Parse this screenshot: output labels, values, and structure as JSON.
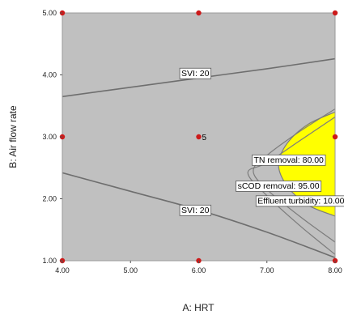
{
  "chart_data": {
    "type": "contour-overlay",
    "xlabel": "A: HRT",
    "ylabel": "B: Air flow rate",
    "xlim": [
      4.0,
      8.0
    ],
    "ylim": [
      1.0,
      5.0
    ],
    "x_ticks": [
      "4.00",
      "5.00",
      "6.00",
      "7.00",
      "8.00"
    ],
    "y_ticks": [
      "1.00",
      "2.00",
      "3.00",
      "4.00",
      "5.00"
    ],
    "colors": {
      "background": "#c0c0c0",
      "feasible_region": "#ffff00",
      "contour_line": "#6e6e6e",
      "design_point": "#cc1a1a"
    },
    "contours": [
      {
        "label": "SVI: 20",
        "points": [
          [
            4.0,
            3.65
          ],
          [
            5.0,
            3.8
          ],
          [
            6.0,
            3.95
          ],
          [
            7.0,
            4.1
          ],
          [
            8.0,
            4.26
          ]
        ],
        "label_at": [
          5.95,
          4.02
        ]
      },
      {
        "label": "SVI: 20",
        "points": [
          [
            4.0,
            2.42
          ],
          [
            5.0,
            2.12
          ],
          [
            6.0,
            1.82
          ],
          [
            7.0,
            1.46
          ],
          [
            8.0,
            1.05
          ]
        ],
        "label_at": [
          5.95,
          1.81
        ]
      },
      {
        "label": "TN removal: 80.00",
        "points": [
          [
            8.0,
            3.4
          ],
          [
            7.6,
            3.2
          ],
          [
            7.3,
            2.9
          ],
          [
            7.17,
            2.55
          ],
          [
            7.3,
            2.2
          ],
          [
            7.6,
            1.9
          ],
          [
            8.0,
            1.72
          ]
        ],
        "label_at": [
          7.32,
          2.62
        ]
      },
      {
        "label": "sCOD removal: 95.00",
        "points": [
          [
            8.0,
            3.45
          ],
          [
            7.5,
            3.1
          ],
          [
            7.0,
            2.7
          ],
          [
            6.8,
            2.45
          ],
          [
            7.0,
            2.15
          ],
          [
            7.5,
            1.7
          ],
          [
            8.0,
            1.3
          ]
        ],
        "label_at": [
          7.17,
          2.2
        ]
      },
      {
        "label": "Effluent turbidity: 10.00",
        "points": [
          [
            8.0,
            3.32
          ],
          [
            7.5,
            2.95
          ],
          [
            7.0,
            2.58
          ],
          [
            6.72,
            2.42
          ],
          [
            7.0,
            2.05
          ],
          [
            7.5,
            1.55
          ],
          [
            8.0,
            1.1
          ]
        ],
        "label_at": [
          7.5,
          1.96
        ]
      }
    ],
    "feasible_region": [
      [
        8.0,
        3.4
      ],
      [
        7.6,
        3.2
      ],
      [
        7.3,
        2.9
      ],
      [
        7.17,
        2.55
      ],
      [
        7.3,
        2.2
      ],
      [
        7.6,
        1.9
      ],
      [
        8.0,
        1.72
      ]
    ],
    "design_points": [
      {
        "x": 4.0,
        "y": 5.0
      },
      {
        "x": 6.0,
        "y": 5.0
      },
      {
        "x": 8.0,
        "y": 5.0
      },
      {
        "x": 4.0,
        "y": 3.0
      },
      {
        "x": 6.0,
        "y": 3.0,
        "label": "5"
      },
      {
        "x": 8.0,
        "y": 3.0
      },
      {
        "x": 4.0,
        "y": 1.0
      },
      {
        "x": 6.0,
        "y": 1.0
      },
      {
        "x": 8.0,
        "y": 1.0
      }
    ]
  }
}
